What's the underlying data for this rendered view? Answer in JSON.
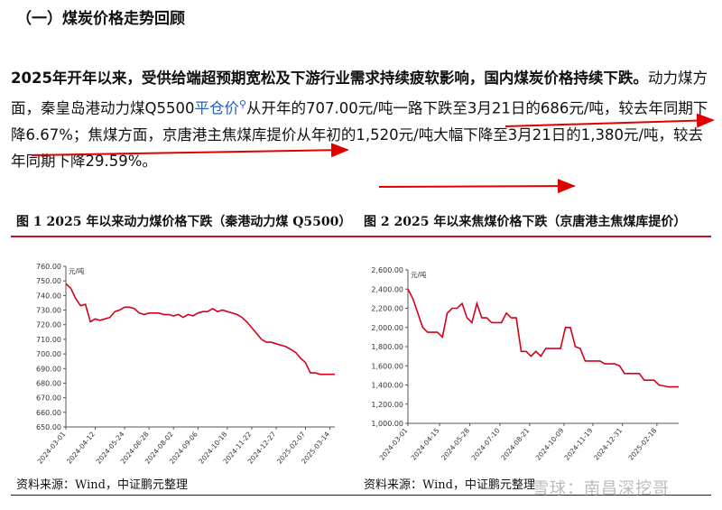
{
  "section_title": "（一）煤炭价格走势回顾",
  "paragraph": {
    "lead_bold": "2025年开年以来，受供给端超预期宽松及下游行业需求持续疲软影响，国内煤炭价格持续下跌。",
    "s1": "动力煤方面，秦皇岛港动力煤Q5500",
    "link": "平仓价",
    "s2": "从开年的707.00元/吨一路下跌至3月21日的686元/吨，较去年同期下降6.67%；焦煤方面，京唐港主焦煤库提价从年初的1,520元/吨大幅下降至3月21日的1,380元/吨，较去年同期下降29.59%。"
  },
  "icons": {
    "search": "search-icon",
    "arrow": "red-arrow-annotation"
  },
  "colors": {
    "line": "#d6001c",
    "accent_rule": "#c0141f",
    "link": "#1f5fbf"
  },
  "figures": [
    {
      "title": "图 1 2025 年以来动力煤价格下跌（秦港动力煤 Q5500）",
      "source": "资料来源：Wind，中证鹏元整理"
    },
    {
      "title": "图 2 2025 年以来焦煤价格下跌（京唐港主焦煤库提价）",
      "source": "资料来源：Wind，中证鹏元整理"
    }
  ],
  "watermark": "雪球：南昌深挖哥",
  "chart_data": [
    {
      "type": "line",
      "unit_label": "元/吨",
      "ylim": [
        650,
        760
      ],
      "yticks": [
        "760.00",
        "750.00",
        "740.00",
        "730.00",
        "720.00",
        "710.00",
        "700.00",
        "690.00",
        "680.00",
        "670.00",
        "660.00",
        "650.00"
      ],
      "xticks": [
        "2024-03-01",
        "2024-04-12",
        "2024-05-24",
        "2024-06-28",
        "2024-08-02",
        "2024-09-06",
        "2024-10-18",
        "2024-11-22",
        "2024-12-27",
        "2025-02-07",
        "2025-03-14"
      ],
      "x": [
        "2024-03-01",
        "2024-03-08",
        "2024-03-15",
        "2024-03-22",
        "2024-03-29",
        "2024-04-05",
        "2024-04-12",
        "2024-04-19",
        "2024-04-26",
        "2024-05-03",
        "2024-05-10",
        "2024-05-17",
        "2024-05-24",
        "2024-05-31",
        "2024-06-07",
        "2024-06-14",
        "2024-06-21",
        "2024-06-28",
        "2024-07-05",
        "2024-07-12",
        "2024-07-19",
        "2024-07-26",
        "2024-08-02",
        "2024-08-09",
        "2024-08-16",
        "2024-08-23",
        "2024-08-30",
        "2024-09-06",
        "2024-09-13",
        "2024-09-20",
        "2024-09-27",
        "2024-10-04",
        "2024-10-11",
        "2024-10-18",
        "2024-10-25",
        "2024-11-01",
        "2024-11-08",
        "2024-11-15",
        "2024-11-22",
        "2024-11-29",
        "2024-12-06",
        "2024-12-13",
        "2024-12-20",
        "2024-12-27",
        "2025-01-03",
        "2025-01-10",
        "2025-01-17",
        "2025-01-24",
        "2025-01-31",
        "2025-02-07",
        "2025-02-14",
        "2025-02-21",
        "2025-02-28",
        "2025-03-07",
        "2025-03-14",
        "2025-03-21"
      ],
      "values": [
        748,
        745,
        738,
        733,
        734,
        722,
        724,
        723,
        724,
        725,
        729,
        730,
        732,
        732,
        731,
        728,
        727,
        728,
        728,
        728,
        727,
        727,
        726,
        727,
        725,
        727,
        726,
        728,
        729,
        729,
        731,
        729,
        730,
        729,
        728,
        727,
        725,
        722,
        718,
        714,
        710,
        708,
        708,
        707,
        706,
        705,
        703,
        701,
        697,
        694,
        687,
        687,
        686,
        686,
        686,
        686
      ]
    },
    {
      "type": "line",
      "unit_label": "元/吨",
      "ylim": [
        1000,
        2600
      ],
      "yticks": [
        "2,600.00",
        "2,400.00",
        "2,200.00",
        "2,000.00",
        "1,800.00",
        "1,600.00",
        "1,400.00",
        "1,200.00",
        "1,000.00"
      ],
      "xticks": [
        "2024-03-01",
        "2024-04-15",
        "2024-05-28",
        "2024-07-10",
        "2024-08-21",
        "2024-10-09",
        "2024-11-19",
        "2024-12-31",
        "2025-02-18"
      ],
      "x": [
        "2024-03-01",
        "2024-03-08",
        "2024-03-15",
        "2024-03-22",
        "2024-03-29",
        "2024-04-05",
        "2024-04-12",
        "2024-04-19",
        "2024-04-26",
        "2024-05-03",
        "2024-05-10",
        "2024-05-17",
        "2024-05-24",
        "2024-05-31",
        "2024-06-07",
        "2024-06-14",
        "2024-06-21",
        "2024-06-28",
        "2024-07-05",
        "2024-07-12",
        "2024-07-19",
        "2024-07-26",
        "2024-08-02",
        "2024-08-09",
        "2024-08-16",
        "2024-08-23",
        "2024-08-30",
        "2024-09-06",
        "2024-09-13",
        "2024-09-20",
        "2024-09-27",
        "2024-10-04",
        "2024-10-11",
        "2024-10-18",
        "2024-10-25",
        "2024-11-01",
        "2024-11-08",
        "2024-11-15",
        "2024-11-22",
        "2024-11-29",
        "2024-12-06",
        "2024-12-13",
        "2024-12-20",
        "2024-12-27",
        "2025-01-03",
        "2025-01-10",
        "2025-01-17",
        "2025-01-24",
        "2025-01-31",
        "2025-02-07",
        "2025-02-14",
        "2025-02-21",
        "2025-02-28",
        "2025-03-07",
        "2025-03-14",
        "2025-03-21"
      ],
      "values": [
        2400,
        2300,
        2150,
        2000,
        1950,
        1950,
        1950,
        1900,
        2150,
        2200,
        2200,
        2250,
        2100,
        2050,
        2250,
        2100,
        2100,
        2050,
        2050,
        2050,
        2150,
        2100,
        2100,
        1750,
        1750,
        1700,
        1750,
        1700,
        1780,
        1780,
        1780,
        1780,
        2000,
        2000,
        1800,
        1780,
        1650,
        1650,
        1650,
        1650,
        1620,
        1620,
        1620,
        1600,
        1520,
        1520,
        1520,
        1520,
        1450,
        1450,
        1450,
        1400,
        1390,
        1380,
        1380,
        1380
      ]
    }
  ]
}
